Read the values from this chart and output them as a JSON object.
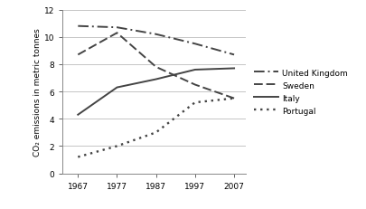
{
  "years": [
    1967,
    1977,
    1987,
    1997,
    2007
  ],
  "united_kingdom": [
    10.8,
    10.7,
    10.2,
    9.5,
    8.7
  ],
  "sweden": [
    8.7,
    10.3,
    7.8,
    6.5,
    5.5
  ],
  "italy": [
    4.3,
    6.3,
    6.9,
    7.6,
    7.7
  ],
  "portugal": [
    1.2,
    2.0,
    3.0,
    5.2,
    5.5
  ],
  "ylabel": "CO₂ emissions in metric tonnes",
  "ylim": [
    0,
    12
  ],
  "yticks": [
    0,
    2,
    4,
    6,
    8,
    10,
    12
  ],
  "xticks": [
    1967,
    1977,
    1987,
    1997,
    2007
  ],
  "legend_labels": [
    "United Kingdom",
    "Sweden",
    "Italy",
    "Portugal"
  ],
  "line_color": "#444444",
  "grid_color": "#bbbbbb",
  "background_color": "#ffffff"
}
